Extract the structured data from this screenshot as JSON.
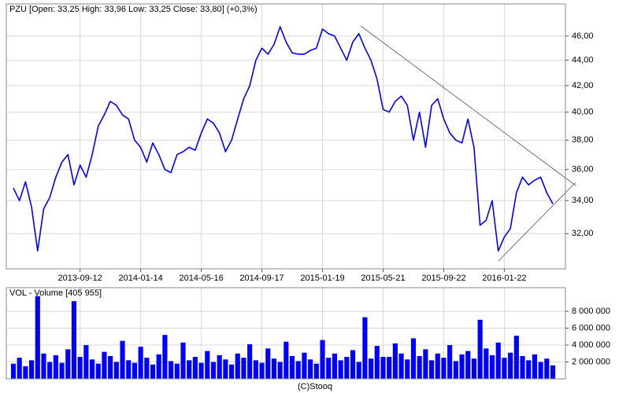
{
  "chart_data": [
    {
      "type": "line",
      "title": "PZU [Open: 33,25  High: 33,96  Low: 33,25  Close: 33,80]  (+0,3%)",
      "categories": [
        null,
        null,
        null,
        null,
        null,
        null,
        null,
        null,
        null,
        null,
        null,
        "2013-09-12",
        null,
        null,
        null,
        null,
        null,
        null,
        null,
        null,
        null,
        "2014-01-14",
        null,
        null,
        null,
        null,
        null,
        null,
        null,
        null,
        null,
        "2014-05-16",
        null,
        null,
        null,
        null,
        null,
        null,
        null,
        null,
        null,
        "2014-09-17",
        null,
        null,
        null,
        null,
        null,
        null,
        null,
        null,
        null,
        "2015-01-19",
        null,
        null,
        null,
        null,
        null,
        null,
        null,
        null,
        null,
        "2015-05-21",
        null,
        null,
        null,
        null,
        null,
        null,
        null,
        null,
        null,
        "2015-09-22",
        null,
        null,
        null,
        null,
        null,
        null,
        null,
        null,
        null,
        "2016-01-22",
        null,
        null,
        null,
        null,
        null,
        null,
        null,
        null
      ],
      "values": [
        34.8,
        34.0,
        35.2,
        33.6,
        31.0,
        33.5,
        34.2,
        35.5,
        36.5,
        37.0,
        35.0,
        36.3,
        35.5,
        37.0,
        39.0,
        39.8,
        40.8,
        40.5,
        39.8,
        39.5,
        38.0,
        37.5,
        36.5,
        37.8,
        37.0,
        36.0,
        35.8,
        37.0,
        37.2,
        37.5,
        37.3,
        38.5,
        39.5,
        39.2,
        38.5,
        37.2,
        38.0,
        39.5,
        41.0,
        42.0,
        44.0,
        45.0,
        44.5,
        45.3,
        46.8,
        45.5,
        44.6,
        44.5,
        44.5,
        44.8,
        45.0,
        46.6,
        46.2,
        46.0,
        45.0,
        44.0,
        45.5,
        46.2,
        45.0,
        44.0,
        42.5,
        40.2,
        40.0,
        40.8,
        41.2,
        40.5,
        38.0,
        40.0,
        37.5,
        40.5,
        41.0,
        39.5,
        38.5,
        38.0,
        37.8,
        39.5,
        37.5,
        32.5,
        32.8,
        34.0,
        31.0,
        31.8,
        32.3,
        34.5,
        35.5,
        35.0,
        35.3,
        35.5,
        34.5,
        33.8
      ],
      "color": "#0000ff",
      "log_scale": true,
      "ylim": [
        30.0,
        48.8
      ],
      "yticks": [
        {
          "value": 32,
          "label": "32,00"
        },
        {
          "value": 34,
          "label": "34,00"
        },
        {
          "value": 36,
          "label": "36,00"
        },
        {
          "value": 38,
          "label": "38,00"
        },
        {
          "value": 40,
          "label": "40,00"
        },
        {
          "value": 42,
          "label": "42,00"
        },
        {
          "value": 44,
          "label": "44,00"
        },
        {
          "value": 46,
          "label": "46,00"
        }
      ],
      "grid": true
    },
    {
      "type": "bar",
      "title": "VOL - Volume [405 955]",
      "values": [
        1800000,
        2500000,
        1500000,
        2200000,
        9800000,
        3000000,
        2000000,
        2800000,
        1900000,
        3500000,
        9200000,
        2600000,
        4000000,
        2300000,
        1800000,
        3200000,
        2700000,
        2000000,
        4500000,
        2200000,
        1900000,
        3800000,
        2500000,
        1700000,
        2900000,
        5200000,
        2100000,
        1800000,
        4300000,
        2200000,
        2600000,
        1900000,
        3300000,
        2000000,
        2800000,
        2300000,
        1700000,
        3000000,
        2500000,
        4100000,
        2200000,
        1900000,
        3600000,
        2400000,
        2000000,
        4400000,
        2700000,
        2100000,
        3100000,
        2300000,
        1800000,
        4600000,
        2500000,
        3000000,
        2200000,
        2600000,
        3400000,
        2000000,
        7300000,
        2400000,
        3900000,
        2600000,
        2600000,
        4200000,
        3000000,
        2300000,
        4800000,
        2700000,
        3500000,
        2200000,
        3000000,
        2500000,
        4000000,
        2100000,
        2900000,
        3300000,
        2400000,
        7000000,
        3600000,
        2800000,
        4300000,
        2500000,
        3100000,
        5100000,
        2700000,
        2200000,
        2900000,
        2000000,
        2400000,
        1600000
      ],
      "color": "#0000ff",
      "ylim": [
        0,
        10800000
      ],
      "yticks": [
        {
          "value": 2000000,
          "label": "2 000 000"
        },
        {
          "value": 4000000,
          "label": "4 000 000"
        },
        {
          "value": 6000000,
          "label": "6 000 000"
        },
        {
          "value": 8000000,
          "label": "8 000 000"
        }
      ],
      "grid": true
    }
  ],
  "footer": "(C)Stooq"
}
